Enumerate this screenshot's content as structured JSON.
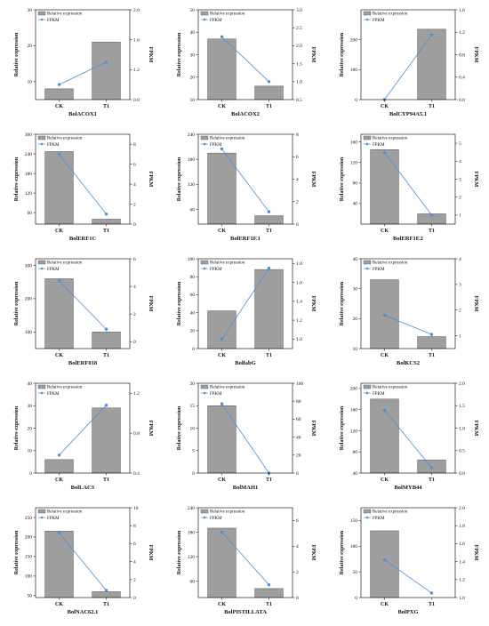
{
  "legend": {
    "bar_label": "Relative expression",
    "line_label": "FPKM"
  },
  "axis_titles": {
    "left": "Relative expression",
    "right": "FPKM"
  },
  "colors": {
    "bar_fill": "#9e9e9e",
    "bar_stroke": "#555555",
    "line": "#4a90d9",
    "axis": "#222222"
  },
  "chart_data": [
    {
      "type": "bar",
      "title": "BolACOX1",
      "categories": [
        "CK",
        "T1"
      ],
      "values": [
        8,
        21
      ],
      "ylim": [
        5,
        30
      ],
      "yticks": [
        "10",
        "20",
        "30"
      ],
      "ytick_values": [
        10,
        20,
        30
      ],
      "fpkm": [
        1.0,
        1.3
      ],
      "y2lim": [
        0.8,
        2.0
      ],
      "y2ticks": [
        "0.8",
        "1.2",
        "1.6",
        "2.0"
      ],
      "y2tick_values": [
        0.8,
        1.2,
        1.6,
        2.0
      ]
    },
    {
      "type": "bar",
      "title": "BolACOX2",
      "categories": [
        "CK",
        "T1"
      ],
      "values": [
        37,
        16
      ],
      "ylim": [
        10,
        50
      ],
      "yticks": [
        "10",
        "20",
        "30",
        "40",
        "50"
      ],
      "ytick_values": [
        10,
        20,
        30,
        40,
        50
      ],
      "fpkm": [
        2.25,
        1.0
      ],
      "y2lim": [
        0.5,
        3.0
      ],
      "y2ticks": [
        "0.5",
        "1.0",
        "1.5",
        "2.0",
        "2.5",
        "3.0"
      ],
      "y2tick_values": [
        0.5,
        1.0,
        1.5,
        2.0,
        2.5,
        3.0
      ]
    },
    {
      "type": "bar",
      "title": "BolCYP94A5.1",
      "categories": [
        "CK",
        "T1"
      ],
      "values": [
        0,
        235
      ],
      "ylim": [
        0,
        300
      ],
      "yticks": [
        "0",
        "100",
        "200"
      ],
      "ytick_values": [
        0,
        100,
        200
      ],
      "fpkm": [
        0.0,
        1.15
      ],
      "y2lim": [
        0.0,
        1.6
      ],
      "y2ticks": [
        "0.0",
        "0.4",
        "0.8",
        "1.2",
        "1.6"
      ],
      "y2tick_values": [
        0.0,
        0.4,
        0.8,
        1.2,
        1.6
      ]
    },
    {
      "type": "bar",
      "title": "BolERF1C",
      "categories": [
        "CK",
        "T1"
      ],
      "values": [
        247,
        40
      ],
      "ylim": [
        25,
        300
      ],
      "yticks": [
        "60",
        "120",
        "180",
        "240",
        "300"
      ],
      "ytick_values": [
        60,
        120,
        180,
        240,
        300
      ],
      "fpkm": [
        7.0,
        1.0
      ],
      "y2lim": [
        0,
        9
      ],
      "y2ticks": [
        "0",
        "2",
        "4",
        "6",
        "8"
      ],
      "y2tick_values": [
        0,
        2,
        4,
        6,
        8
      ]
    },
    {
      "type": "bar",
      "title": "BolERF1F.1",
      "categories": [
        "CK",
        "T1"
      ],
      "values": [
        195,
        45
      ],
      "ylim": [
        25,
        240
      ],
      "yticks": [
        "60",
        "120",
        "180",
        "240"
      ],
      "ytick_values": [
        60,
        120,
        180,
        240
      ],
      "fpkm": [
        6.7,
        1.1
      ],
      "y2lim": [
        0,
        8
      ],
      "y2ticks": [
        "0",
        "2",
        "4",
        "6",
        "8"
      ],
      "y2tick_values": [
        0,
        2,
        4,
        6,
        8
      ]
    },
    {
      "type": "bar",
      "title": "BolERF1F.2",
      "categories": [
        "CK",
        "T1"
      ],
      "values": [
        145,
        20
      ],
      "ylim": [
        0,
        175
      ],
      "yticks": [
        "40",
        "80",
        "120",
        "160"
      ],
      "ytick_values": [
        40,
        80,
        120,
        160
      ],
      "fpkm": [
        4.5,
        1.0
      ],
      "y2lim": [
        0.5,
        5.5
      ],
      "y2ticks": [
        "1",
        "2",
        "3",
        "4",
        "5"
      ],
      "y2tick_values": [
        1,
        2,
        3,
        4,
        5
      ]
    },
    {
      "type": "bar",
      "title": "BolERF018",
      "categories": [
        "CK",
        "T1"
      ],
      "values": [
        260,
        100
      ],
      "ylim": [
        50,
        320
      ],
      "yticks": [
        "100",
        "200",
        "300"
      ],
      "ytick_values": [
        100,
        200,
        300
      ],
      "fpkm": [
        4.4,
        0.9
      ],
      "y2lim": [
        -0.5,
        6
      ],
      "y2ticks": [
        "0",
        "2",
        "4",
        "6"
      ],
      "y2tick_values": [
        0,
        2,
        4,
        6
      ]
    },
    {
      "type": "bar",
      "title": "BolfabG",
      "categories": [
        "CK",
        "T1"
      ],
      "values": [
        42,
        88
      ],
      "ylim": [
        0,
        100
      ],
      "yticks": [
        "0",
        "20",
        "40",
        "60",
        "80",
        "100"
      ],
      "ytick_values": [
        0,
        20,
        40,
        60,
        80,
        100
      ],
      "fpkm": [
        1.0,
        1.75
      ],
      "y2lim": [
        0.9,
        1.85
      ],
      "y2ticks": [
        "1.0",
        "1.2",
        "1.4",
        "1.6",
        "1.8"
      ],
      "y2tick_values": [
        1.0,
        1.2,
        1.4,
        1.6,
        1.8
      ]
    },
    {
      "type": "bar",
      "title": "BolKCS2",
      "categories": [
        "CK",
        "T1"
      ],
      "values": [
        33,
        14
      ],
      "ylim": [
        10,
        40
      ],
      "yticks": [
        "10",
        "20",
        "30",
        "40"
      ],
      "ytick_values": [
        10,
        20,
        30,
        40
      ],
      "fpkm": [
        1.8,
        1.05
      ],
      "y2lim": [
        0.5,
        4.0
      ],
      "y2ticks": [
        "1",
        "2",
        "3",
        "4"
      ],
      "y2tick_values": [
        1,
        2,
        3,
        4
      ]
    },
    {
      "type": "bar",
      "title": "BolLACS",
      "categories": [
        "CK",
        "T1"
      ],
      "values": [
        6,
        29
      ],
      "ylim": [
        0,
        40
      ],
      "yticks": [
        "0",
        "10",
        "20",
        "30",
        "40"
      ],
      "ytick_values": [
        0,
        10,
        20,
        30,
        40
      ],
      "fpkm": [
        0.58,
        1.08
      ],
      "y2lim": [
        0.4,
        1.3
      ],
      "y2ticks": [
        "0.4",
        "0.8",
        "1.2"
      ],
      "y2tick_values": [
        0.4,
        0.8,
        1.2
      ]
    },
    {
      "type": "bar",
      "title": "BolMAH1",
      "categories": [
        "CK",
        "T1"
      ],
      "values": [
        15,
        0
      ],
      "ylim": [
        0,
        20
      ],
      "yticks": [
        "0",
        "5",
        "10",
        "15",
        "20"
      ],
      "ytick_values": [
        0,
        5,
        10,
        15,
        20
      ],
      "fpkm": [
        77,
        0
      ],
      "y2lim": [
        0,
        100
      ],
      "y2ticks": [
        "0",
        "20",
        "40",
        "60",
        "80",
        "100"
      ],
      "y2tick_values": [
        0,
        20,
        40,
        60,
        80,
        100
      ]
    },
    {
      "type": "bar",
      "title": "BolMYB44",
      "categories": [
        "CK",
        "T1"
      ],
      "values": [
        180,
        65
      ],
      "ylim": [
        40,
        210
      ],
      "yticks": [
        "40",
        "80",
        "120",
        "160",
        "200"
      ],
      "ytick_values": [
        40,
        80,
        120,
        160,
        200
      ],
      "fpkm": [
        1.4,
        0.12
      ],
      "y2lim": [
        0,
        2.0
      ],
      "y2ticks": [
        "0.0",
        "0.5",
        "1.0",
        "1.5",
        "2.0"
      ],
      "y2tick_values": [
        0,
        0.5,
        1.0,
        1.5,
        2.0
      ]
    },
    {
      "type": "bar",
      "title": "BolNAC62.1",
      "categories": [
        "CK",
        "T1"
      ],
      "values": [
        215,
        60
      ],
      "ylim": [
        45,
        275
      ],
      "yticks": [
        "50",
        "100",
        "150",
        "200",
        "250"
      ],
      "ytick_values": [
        50,
        100,
        150,
        200,
        250
      ],
      "fpkm": [
        7.2,
        0.8
      ],
      "y2lim": [
        0,
        10
      ],
      "y2ticks": [
        "0",
        "2",
        "4",
        "6",
        "8",
        "10"
      ],
      "y2tick_values": [
        0,
        2,
        4,
        6,
        8,
        10
      ]
    },
    {
      "type": "bar",
      "title": "BolPISTILLATA",
      "categories": [
        "CK",
        "T1"
      ],
      "values": [
        190,
        42
      ],
      "ylim": [
        20,
        240
      ],
      "yticks": [
        "60",
        "120",
        "180",
        "240"
      ],
      "ytick_values": [
        60,
        120,
        180,
        240
      ],
      "fpkm": [
        5.1,
        1.0
      ],
      "y2lim": [
        0,
        7
      ],
      "y2ticks": [
        "0",
        "2",
        "4",
        "6"
      ],
      "y2tick_values": [
        0,
        2,
        4,
        6
      ]
    },
    {
      "type": "bar",
      "title": "BolPXG",
      "categories": [
        "CK",
        "T1"
      ],
      "values": [
        130,
        0
      ],
      "ylim": [
        0,
        175
      ],
      "yticks": [
        "0",
        "50",
        "100",
        "150"
      ],
      "ytick_values": [
        0,
        50,
        100,
        150
      ],
      "fpkm": [
        1.42,
        1.05
      ],
      "y2lim": [
        1.0,
        2.0
      ],
      "y2ticks": [
        "1.0",
        "1.2",
        "1.4",
        "1.6",
        "1.8",
        "2.0"
      ],
      "y2tick_values": [
        1.0,
        1.2,
        1.4,
        1.6,
        1.8,
        2.0
      ]
    }
  ]
}
